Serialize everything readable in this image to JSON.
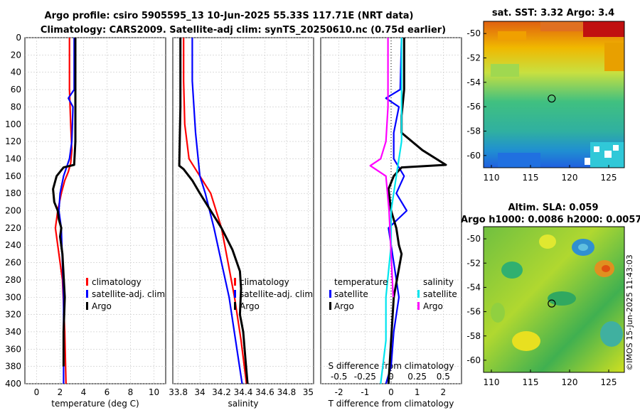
{
  "header": {
    "title1": "Argo profile: csiro 5905595_13 10-Jun-2025 55.33S 117.71E (NRT data)",
    "title2": "Climatology: CARS2009. Satellite-adj clim: synTS_20250610.nc (0.75d earlier)"
  },
  "watermark": "©IMOS 15-Jun-2025 11:43:03",
  "colors": {
    "climatology": "#ff0000",
    "satellite": "#0000ff",
    "argo": "#000000",
    "sal_sat": "#00e5ee",
    "sal_argo": "#ff00ff"
  },
  "chart_data": [
    {
      "type": "line",
      "id": "temperature",
      "xlabel": "temperature (deg C)",
      "xlim": [
        -1,
        11
      ],
      "ylim": [
        0,
        400
      ],
      "xticks": [
        "0",
        "2",
        "4",
        "6",
        "8",
        "10"
      ],
      "xtick_values": [
        0,
        2,
        4,
        6,
        8,
        10
      ],
      "yticks": [
        "0",
        "20",
        "40",
        "60",
        "80",
        "100",
        "120",
        "140",
        "160",
        "180",
        "200",
        "220",
        "240",
        "260",
        "280",
        "300",
        "320",
        "340",
        "360",
        "380",
        "400"
      ],
      "ytick_values": [
        0,
        20,
        40,
        60,
        80,
        100,
        120,
        140,
        160,
        180,
        200,
        220,
        240,
        260,
        280,
        300,
        320,
        340,
        360,
        380,
        400
      ],
      "legend": [
        "climatology",
        "satellite-adj. clim",
        "Argo"
      ],
      "series": [
        {
          "name": "climatology",
          "color": "#ff0000",
          "x": [
            2.8,
            2.8,
            2.9,
            3.0,
            2.9,
            2.7,
            2.4,
            2.1,
            1.8,
            1.6,
            1.8,
            2.0,
            2.2,
            2.4,
            2.5
          ],
          "y": [
            0,
            60,
            100,
            130,
            145,
            155,
            165,
            180,
            200,
            220,
            240,
            260,
            280,
            340,
            400
          ]
        },
        {
          "name": "satellite-adj. clim",
          "color": "#0000ff",
          "x": [
            3.2,
            3.2,
            2.7,
            3.1,
            3.0,
            2.8,
            2.3,
            2.0,
            1.9,
            2.1,
            2.2,
            2.3,
            2.3,
            2.3
          ],
          "y": [
            0,
            60,
            70,
            80,
            120,
            140,
            160,
            180,
            200,
            220,
            260,
            300,
            340,
            400
          ]
        },
        {
          "name": "Argo",
          "color": "#000000",
          "x": [
            3.3,
            3.3,
            3.3,
            3.2,
            2.3,
            2.0,
            1.7,
            1.4,
            1.5,
            1.8,
            1.9,
            2.1,
            2.0,
            2.2,
            2.4,
            2.3,
            2.3,
            2.3
          ],
          "y": [
            0,
            60,
            120,
            147,
            150,
            155,
            160,
            175,
            190,
            200,
            210,
            220,
            230,
            250,
            300,
            340,
            360,
            380
          ]
        }
      ]
    },
    {
      "type": "line",
      "id": "salinity",
      "xlabel": "salinity",
      "xlim": [
        33.75,
        35.05
      ],
      "ylim": [
        0,
        400
      ],
      "xticks": [
        "33.8",
        "34",
        "34.2",
        "34.4",
        "34.6",
        "34.8",
        "35"
      ],
      "xtick_values": [
        33.8,
        34,
        34.2,
        34.4,
        34.6,
        34.8,
        35
      ],
      "legend": [
        "climatology",
        "satellite-adj. clim",
        "Argo"
      ],
      "series": [
        {
          "name": "climatology",
          "color": "#ff0000",
          "x": [
            33.85,
            33.85,
            33.86,
            33.9,
            34.0,
            34.1,
            34.2,
            34.26,
            34.32,
            34.38,
            34.43
          ],
          "y": [
            0,
            50,
            100,
            140,
            160,
            180,
            220,
            260,
            300,
            350,
            400
          ]
        },
        {
          "name": "satellite-adj. clim",
          "color": "#0000ff",
          "x": [
            33.93,
            33.93,
            33.96,
            34.0,
            34.05,
            34.13,
            34.2,
            34.27,
            34.33,
            34.39
          ],
          "y": [
            0,
            50,
            110,
            160,
            180,
            220,
            260,
            300,
            350,
            400
          ]
        },
        {
          "name": "Argo",
          "color": "#000000",
          "x": [
            33.82,
            33.82,
            33.81,
            33.85,
            33.93,
            34.0,
            34.1,
            34.2,
            34.3,
            34.37,
            34.38,
            34.37,
            34.4,
            34.42,
            34.44
          ],
          "y": [
            0,
            80,
            148,
            152,
            165,
            180,
            200,
            220,
            245,
            270,
            290,
            320,
            340,
            370,
            400
          ]
        }
      ]
    },
    {
      "type": "line",
      "id": "difference",
      "xlabel": "T difference from climatology",
      "xlabel2": "S difference from climatology",
      "xlim": [
        -2.7,
        2.7
      ],
      "ylim": [
        0,
        400
      ],
      "xticks": [
        "-2",
        "-1",
        "0",
        "1",
        "2"
      ],
      "xtick_values": [
        -2,
        -1,
        0,
        1,
        2
      ],
      "xticks2": [
        "-0.5",
        "-0.25",
        "0",
        "0.25",
        "0.5"
      ],
      "xtick2_values": [
        -0.5,
        -0.25,
        0,
        0.25,
        0.5
      ],
      "legend_left_title": "temperature",
      "legend_left": [
        "satellite",
        "Argo"
      ],
      "legend_right_title": "salinity",
      "legend_right": [
        "satellite",
        "Argo"
      ],
      "series": [
        {
          "name": "T satellite",
          "color": "#0000ff",
          "x": [
            0.4,
            0.35,
            -0.2,
            0.3,
            0.1,
            0.1,
            0.5,
            0.2,
            0.6,
            -0.1,
            0.1,
            0.3,
            0.1,
            0.0,
            -0.2
          ],
          "y": [
            0,
            60,
            70,
            80,
            110,
            140,
            160,
            180,
            200,
            220,
            260,
            300,
            340,
            380,
            400
          ]
        },
        {
          "name": "T Argo",
          "color": "#000000",
          "x": [
            0.5,
            0.5,
            0.4,
            0.4,
            1.2,
            2.1,
            0.4,
            0.1,
            -0.1,
            0.0,
            0.2,
            0.3,
            0.4,
            0.1,
            0.0,
            -0.1
          ],
          "y": [
            0,
            60,
            90,
            110,
            130,
            147,
            150,
            160,
            175,
            200,
            220,
            240,
            250,
            300,
            350,
            400
          ]
        },
        {
          "name": "S satellite",
          "color": "#00e5ee",
          "x": [
            0.1,
            0.1,
            0.05,
            0.0,
            0.0,
            -0.05,
            -0.05,
            -0.1
          ],
          "y": [
            0,
            120,
            160,
            200,
            240,
            300,
            350,
            400
          ]
        },
        {
          "name": "S Argo",
          "color": "#ff00ff",
          "x": [
            -0.03,
            -0.03,
            -0.05,
            -0.1,
            -0.2,
            -0.05,
            -0.02,
            0.0,
            0.02
          ],
          "y": [
            0,
            80,
            120,
            140,
            148,
            160,
            200,
            250,
            300
          ]
        }
      ]
    },
    {
      "type": "heatmap",
      "id": "sst",
      "title": "sat. SST: 3.32 Argo: 3.4",
      "xlim": [
        109,
        127
      ],
      "ylim": [
        -61,
        -49
      ],
      "xticks": [
        "110",
        "115",
        "120",
        "125"
      ],
      "xtick_values": [
        110,
        115,
        120,
        125
      ],
      "yticks": [
        "-50",
        "-52",
        "-54",
        "-56",
        "-58",
        "-60"
      ],
      "ytick_values": [
        -50,
        -52,
        -54,
        -56,
        -58,
        -60
      ],
      "marker": {
        "lon": 117.71,
        "lat": -55.33
      }
    },
    {
      "type": "heatmap",
      "id": "sla",
      "title": "Altim. SLA: 0.059",
      "subtitle": "Argo h1000: 0.0086 h2000: 0.0057",
      "xlim": [
        109,
        127
      ],
      "ylim": [
        -61,
        -49
      ],
      "xticks": [
        "110",
        "115",
        "120",
        "125"
      ],
      "xtick_values": [
        110,
        115,
        120,
        125
      ],
      "yticks": [
        "-50",
        "-52",
        "-54",
        "-56",
        "-58",
        "-60"
      ],
      "ytick_values": [
        -50,
        -52,
        -54,
        -56,
        -58,
        -60
      ],
      "marker": {
        "lon": 117.71,
        "lat": -55.33
      }
    }
  ]
}
